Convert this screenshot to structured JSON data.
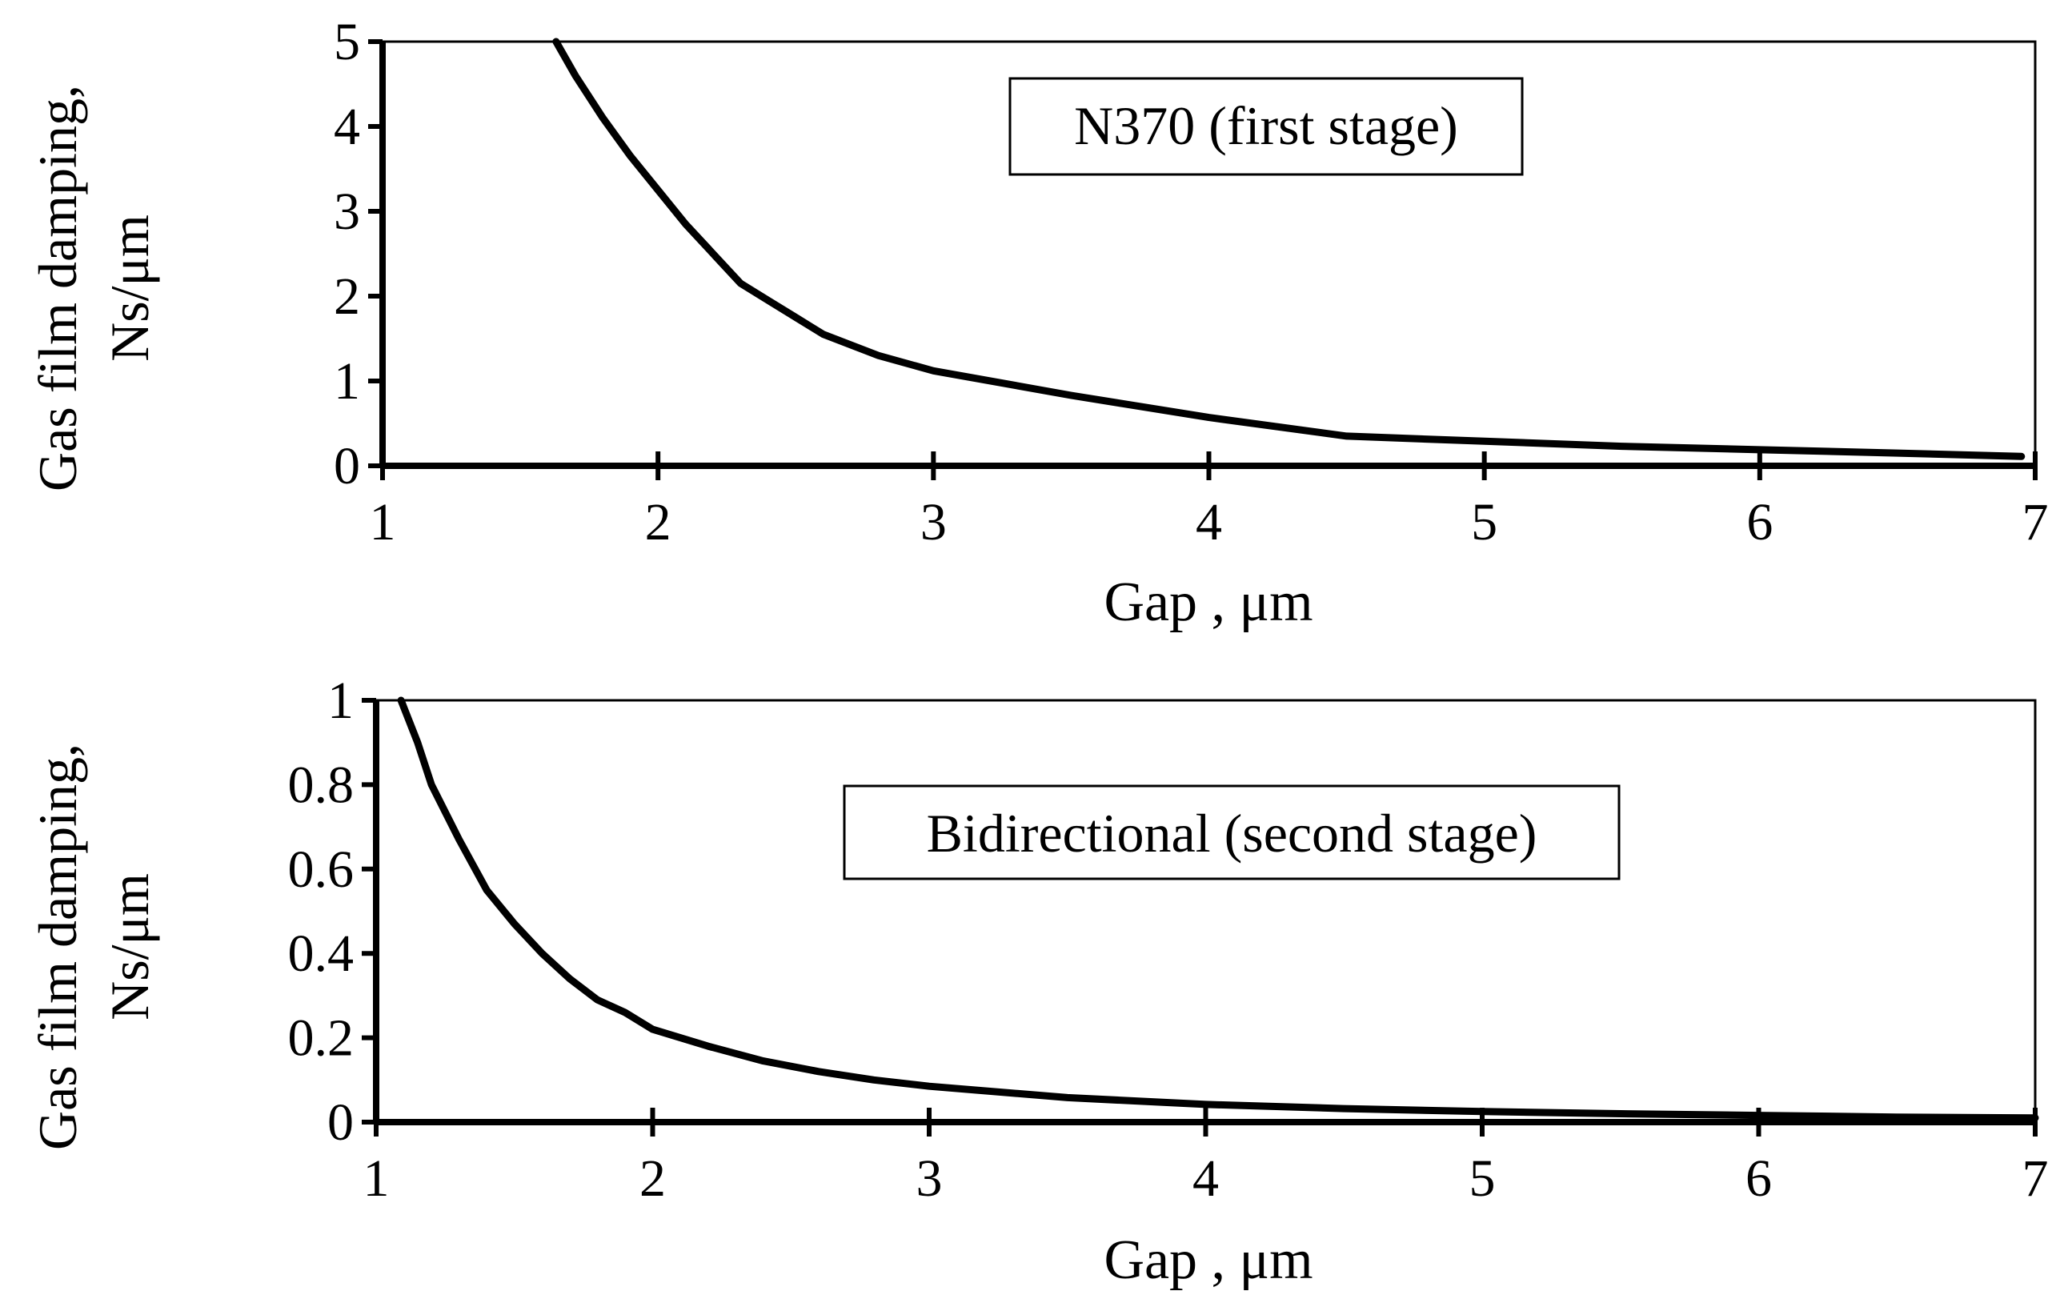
{
  "chart_data": [
    {
      "type": "line",
      "title": "",
      "annotation": "N370 (first stage)",
      "xlabel": "Gap , μm",
      "ylabel_line1": "Gas film damping,",
      "ylabel_line2": "Ns/μm",
      "xlim": [
        1,
        7
      ],
      "ylim": [
        0,
        5
      ],
      "x_ticks": [
        "1",
        "2",
        "3",
        "4",
        "5",
        "6",
        "7"
      ],
      "y_ticks": [
        "0",
        "1",
        "2",
        "3",
        "4",
        "5"
      ],
      "grid": false,
      "color": "#000000",
      "series": [
        {
          "x": [
            1.63,
            1.7,
            1.8,
            1.9,
            2.0,
            2.1,
            2.2,
            2.3,
            2.4,
            2.5,
            2.6,
            2.8,
            3.0,
            3.5,
            4.0,
            4.5,
            5.0,
            5.5,
            6.0,
            6.5,
            6.95
          ],
          "y": [
            5.0,
            4.6,
            4.1,
            3.65,
            3.25,
            2.85,
            2.5,
            2.15,
            1.95,
            1.75,
            1.55,
            1.3,
            1.12,
            0.83,
            0.57,
            0.35,
            0.29,
            0.23,
            0.19,
            0.15,
            0.11
          ]
        }
      ]
    },
    {
      "type": "line",
      "title": "",
      "annotation": "Bidirectional (second stage)",
      "xlabel": "Gap , μm",
      "ylabel_line1": "Gas film damping,",
      "ylabel_line2": "Ns/μm",
      "xlim": [
        1,
        7
      ],
      "ylim": [
        0,
        1
      ],
      "x_ticks": [
        "1",
        "2",
        "3",
        "4",
        "5",
        "6",
        "7"
      ],
      "y_ticks": [
        "0",
        "0.2",
        "0.4",
        "0.6",
        "0.8",
        "1"
      ],
      "grid": false,
      "color": "#000000",
      "series": [
        {
          "x": [
            1.09,
            1.15,
            1.2,
            1.3,
            1.4,
            1.5,
            1.6,
            1.7,
            1.8,
            1.9,
            2.0,
            2.2,
            2.4,
            2.6,
            2.8,
            3.0,
            3.5,
            4.0,
            4.5,
            5.0,
            5.5,
            6.0,
            6.5,
            7.0
          ],
          "y": [
            1.0,
            0.9,
            0.8,
            0.67,
            0.55,
            0.47,
            0.4,
            0.34,
            0.29,
            0.26,
            0.22,
            0.18,
            0.145,
            0.12,
            0.1,
            0.085,
            0.058,
            0.042,
            0.032,
            0.025,
            0.02,
            0.016,
            0.012,
            0.01
          ]
        }
      ]
    }
  ]
}
